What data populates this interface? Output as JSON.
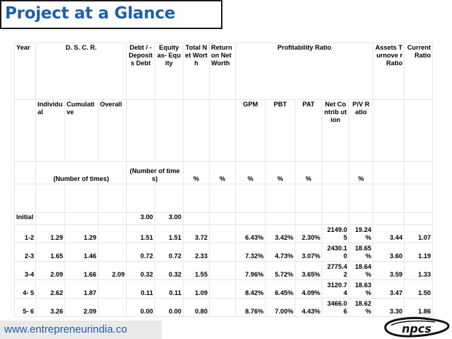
{
  "title": "Project at a Glance",
  "footer_url": "www.entrepreneurindia.co",
  "logo_text": "npcs",
  "header": {
    "year": "Year",
    "dscr": "D. S. C. R.",
    "debt_deposit": "Debt / - Deposit s Debt",
    "equity": "Equity as- Equity",
    "total_net_worth": "Total Net Worth",
    "return_on_net_worth": "Return on Net Worth",
    "profitability_ratio": "Profitability Ratio",
    "assets_turnover": "Assets Turnove r Ratio",
    "current_ratio": "Current Ratio"
  },
  "subheader": {
    "individual": "Individu al",
    "cumulative": "Cumulati ve",
    "overall": "Overall",
    "gpm": "GPM",
    "pbt": "PBT",
    "pat": "PAT",
    "net_contribution": "Net Contrib ution",
    "pv_ratio": "P/V Ratio"
  },
  "units": {
    "number_of_times_1": "(Number of times)",
    "number_of_times_2": "(Number of times)",
    "pct_1": "%",
    "pct_2": "%",
    "pct_3": "%",
    "pct_4": "%",
    "pct_5": "%",
    "pct_6": "%"
  },
  "rows": [
    {
      "year": "Initial",
      "individual": "",
      "cumulative": "",
      "overall": "",
      "debt": "3.00",
      "equity": "3.00",
      "tnw": "",
      "ronw": "",
      "gpm": "",
      "pbt": "",
      "pat": "",
      "net": "",
      "pv": "",
      "assets": "",
      "current": ""
    },
    {
      "year": "1-2",
      "individual": "1.29",
      "cumulative": "1.29",
      "overall": "",
      "debt": "1.51",
      "equity": "1.51",
      "tnw": "3.72",
      "ronw": "",
      "gpm": "6.43%",
      "pbt": "3.42%",
      "pat": "2.30%",
      "net": "2149.05",
      "pv": "19.24 %",
      "assets": "3.44",
      "current": "1.07"
    },
    {
      "year": "2-3",
      "individual": "1.65",
      "cumulative": "1.46",
      "overall": "",
      "debt": "0.72",
      "equity": "0.72",
      "tnw": "2.33",
      "ronw": "",
      "gpm": "7.32%",
      "pbt": "4.73%",
      "pat": "3.07%",
      "net": "2430.10",
      "pv": "18.65 %",
      "assets": "3.60",
      "current": "1.19"
    },
    {
      "year": "3-4",
      "individual": "2.09",
      "cumulative": "1.66",
      "overall": "2.09",
      "debt": "0.32",
      "equity": "0.32",
      "tnw": "1.55",
      "ronw": "",
      "gpm": "7.96%",
      "pbt": "5.72%",
      "pat": "3.65%",
      "net": "2775.42",
      "pv": "18.64 %",
      "assets": "3.59",
      "current": "1.33"
    },
    {
      "year": "4- 5",
      "individual": "2.62",
      "cumulative": "1.87",
      "overall": "",
      "debt": "0.11",
      "equity": "0.11",
      "tnw": "1.09",
      "ronw": "",
      "gpm": "8.42%",
      "pbt": "6.45%",
      "pat": "4.09%",
      "net": "3120.74",
      "pv": "18.63 %",
      "assets": "3.47",
      "current": "1.50"
    },
    {
      "year": "5- 6",
      "individual": "3.26",
      "cumulative": "2.09",
      "overall": "",
      "debt": "0.00",
      "equity": "0.00",
      "tnw": "0.80",
      "ronw": "",
      "gpm": "8.76%",
      "pbt": "7.00%",
      "pat": "4.43%",
      "net": "3466.06",
      "pv": "18.62 %",
      "assets": "3.30",
      "current": "1.86"
    }
  ]
}
